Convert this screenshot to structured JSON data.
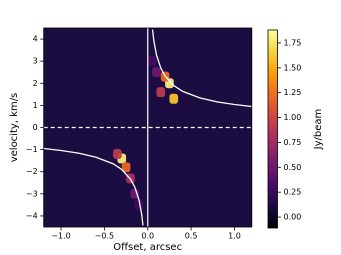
{
  "chart_data": {
    "type": "heatmap",
    "xlabel": "Offset, arcsec",
    "ylabel": "velocity, km/s",
    "colorbar_label": "Jy/beam",
    "colormap": "inferno",
    "xlim": [
      -1.2,
      1.2
    ],
    "xticks": [
      {
        "value": -1.0,
        "label": "−1.0"
      },
      {
        "value": -0.5,
        "label": "−0.5"
      },
      {
        "value": 0,
        "label": "0.0"
      },
      0.5,
      {
        "value": 1.0,
        "label": "1.0"
      }
    ],
    "ylim": [
      -4.5,
      4.5
    ],
    "yticks": [
      {
        "value": -4,
        "label": "−4"
      },
      {
        "value": -3,
        "label": "−3"
      },
      {
        "value": -2,
        "label": "−2"
      },
      {
        "value": -1,
        "label": "−1"
      },
      0,
      1,
      2,
      3,
      4
    ],
    "clim": [
      -0.11,
      1.88
    ],
    "cticks": [
      {
        "value": 0,
        "label": "0.00"
      },
      {
        "value": 0.25,
        "label": "0.25"
      },
      {
        "value": 0.5,
        "label": "0.50"
      },
      {
        "value": 0.75,
        "label": "0.75"
      },
      {
        "value": 1.0,
        "label": "1.00"
      },
      {
        "value": 1.25,
        "label": "1.25"
      },
      {
        "value": 1.5,
        "label": "1.50"
      },
      {
        "value": 1.75,
        "label": "1.75"
      }
    ],
    "cells": {
      "x": [
        0.25,
        0.3,
        0.2,
        0.15,
        0.1,
        0.05,
        -0.3,
        -0.25,
        -0.2,
        -0.15,
        -0.35,
        -0.1
      ],
      "y": [
        2.0,
        1.3,
        2.3,
        1.6,
        2.5,
        3.0,
        -1.4,
        -1.8,
        -2.3,
        -3.0,
        -1.2,
        -3.5
      ],
      "values": [
        1.8,
        1.6,
        1.2,
        0.9,
        0.5,
        0.3,
        1.8,
        1.2,
        0.8,
        0.5,
        0.9,
        0.3
      ]
    },
    "curves": [
      {
        "x": [
          0.055,
          0.07,
          0.1,
          0.15,
          0.2,
          0.3,
          0.4,
          0.6,
          0.8,
          1.0,
          1.2
        ],
        "y": [
          4.43,
          3.93,
          3.29,
          2.69,
          2.33,
          1.9,
          1.64,
          1.34,
          1.16,
          1.04,
          0.95
        ]
      },
      {
        "x": [
          -0.055,
          -0.07,
          -0.1,
          -0.15,
          -0.2,
          -0.3,
          -0.4,
          -0.6,
          -0.8,
          -1.0,
          -1.2
        ],
        "y": [
          -4.43,
          -3.93,
          -3.29,
          -2.69,
          -2.33,
          -1.9,
          -1.64,
          -1.34,
          -1.16,
          -1.04,
          -0.95
        ]
      }
    ]
  }
}
